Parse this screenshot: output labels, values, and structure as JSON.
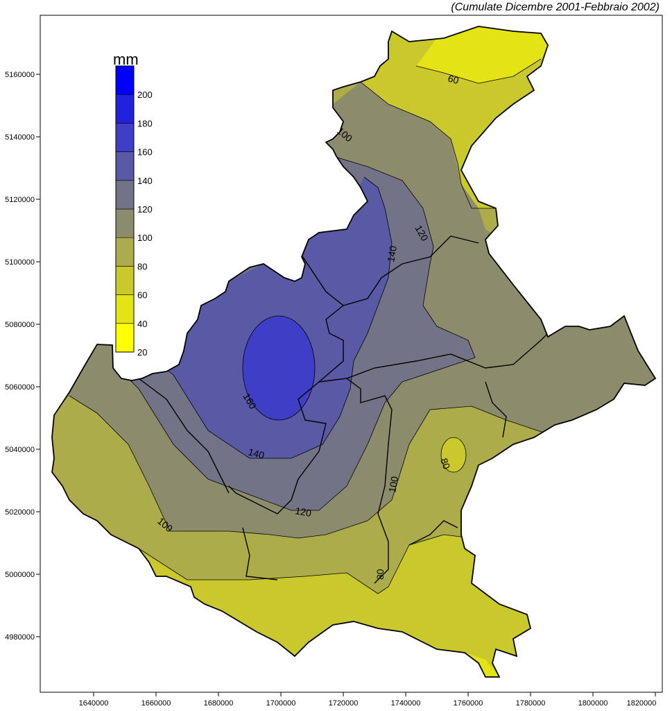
{
  "caption": "(Cumulate Dicembre 2001-Febbraio 2002)",
  "legend": {
    "unit": "mm",
    "ticks": [
      "20",
      "40",
      "60",
      "80",
      "100",
      "120",
      "140",
      "160",
      "180",
      "200"
    ],
    "bands": [
      {
        "from": 20,
        "to": 40,
        "color": "#ffff00"
      },
      {
        "from": 40,
        "to": 60,
        "color": "#e4e414"
      },
      {
        "from": 60,
        "to": 80,
        "color": "#c9c92e"
      },
      {
        "from": 80,
        "to": 100,
        "color": "#acac4a"
      },
      {
        "from": 100,
        "to": 120,
        "color": "#8c8c6c"
      },
      {
        "from": 120,
        "to": 140,
        "color": "#737388"
      },
      {
        "from": 140,
        "to": 160,
        "color": "#5959a6"
      },
      {
        "from": 160,
        "to": 180,
        "color": "#3e3ec6"
      },
      {
        "from": 180,
        "to": 200,
        "color": "#2222de"
      },
      {
        "from": 200,
        "to": 220,
        "color": "#0000ff"
      }
    ]
  },
  "axes": {
    "x_ticks": [
      "1640000",
      "1660000",
      "1680000",
      "1700000",
      "1720000",
      "1740000",
      "1760000",
      "1780000",
      "1800000",
      "1820000"
    ],
    "y_ticks": [
      "5160000",
      "5140000",
      "5120000",
      "5100000",
      "5080000",
      "5060000",
      "5040000",
      "5020000",
      "5000000",
      "4980000"
    ]
  },
  "contour_labels": [
    "60",
    "100",
    "120",
    "140",
    "160",
    "140",
    "120",
    "100",
    "80",
    "80",
    "100"
  ]
}
